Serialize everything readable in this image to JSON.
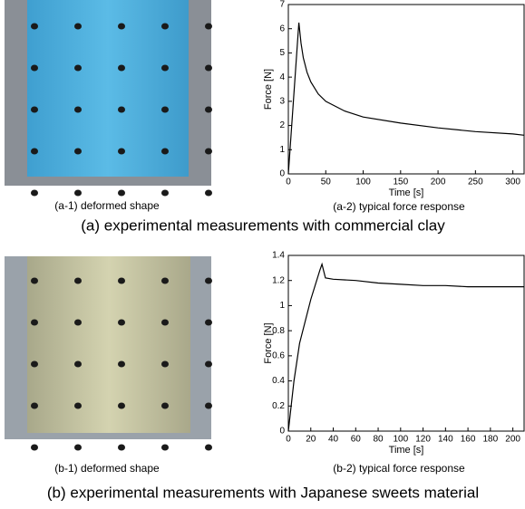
{
  "chart_data": [
    {
      "type": "line",
      "xlabel": "Time [s]",
      "ylabel": "Force [N]",
      "x": [
        0,
        14,
        17,
        20,
        25,
        30,
        40,
        50,
        75,
        100,
        150,
        200,
        250,
        300,
        315
      ],
      "series": [
        {
          "color": "#000000",
          "values": [
            0,
            6.25,
            5.4,
            4.8,
            4.2,
            3.8,
            3.3,
            3.0,
            2.6,
            2.35,
            2.1,
            1.9,
            1.75,
            1.65,
            1.6
          ]
        }
      ],
      "xlim": [
        0,
        315
      ],
      "xticks": [
        0,
        50,
        100,
        150,
        200,
        250,
        300
      ],
      "ylim": [
        0,
        7
      ],
      "yticks": [
        0,
        1,
        2,
        3,
        4,
        5,
        6,
        7
      ]
    },
    {
      "type": "line",
      "xlabel": "Time [s]",
      "ylabel": "Force [N]",
      "x": [
        0,
        5,
        10,
        20,
        28,
        30,
        33,
        40,
        60,
        80,
        100,
        120,
        140,
        160,
        180,
        210
      ],
      "series": [
        {
          "color": "#000000",
          "values": [
            0,
            0.4,
            0.7,
            1.05,
            1.28,
            1.33,
            1.22,
            1.21,
            1.2,
            1.18,
            1.17,
            1.16,
            1.16,
            1.15,
            1.15,
            1.15
          ]
        }
      ],
      "xlim": [
        0,
        210
      ],
      "xticks": [
        0,
        20,
        40,
        60,
        80,
        100,
        120,
        140,
        160,
        180,
        200
      ],
      "ylim": [
        0,
        1.4
      ],
      "yticks": [
        0,
        0.2,
        0.4,
        0.6,
        0.8,
        1,
        1.2,
        1.4
      ]
    }
  ],
  "captions": {
    "a1": "(a-1) deformed shape",
    "a2": "(a-2) typical force response",
    "a": "(a) experimental measurements with commercial clay",
    "b1": "(b-1) deformed shape",
    "b2": "(b-2) typical force response",
    "b": "(b) experimental measurements with Japanese sweets material"
  }
}
